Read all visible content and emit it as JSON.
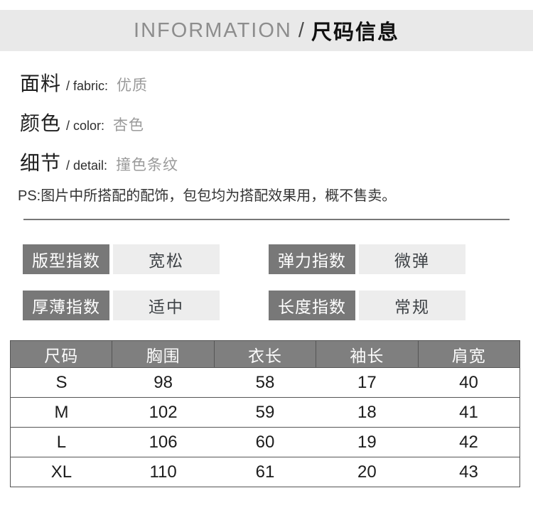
{
  "banner": {
    "title_en": "INFORMATION",
    "separator": "/",
    "title_cn": "尺码信息"
  },
  "attributes": [
    {
      "label_cn": "面料",
      "label_en": "/ fabric:",
      "value": "优质"
    },
    {
      "label_cn": "颜色",
      "label_en": "/ color:",
      "value": "杏色"
    },
    {
      "label_cn": "细节",
      "label_en": "/ detail:",
      "value": "撞色条纹"
    }
  ],
  "note": "PS:图片中所搭配的配饰，包包均为搭配效果用，概不售卖。",
  "indices": [
    {
      "label": "版型指数",
      "value": "宽松"
    },
    {
      "label": "弹力指数",
      "value": "微弹"
    },
    {
      "label": "厚薄指数",
      "value": "适中"
    },
    {
      "label": "长度指数",
      "value": "常规"
    }
  ],
  "size_table": {
    "headers": [
      "尺码",
      "胸围",
      "衣长",
      "袖长",
      "肩宽"
    ],
    "rows": [
      [
        "S",
        "98",
        "58",
        "17",
        "40"
      ],
      [
        "M",
        "102",
        "59",
        "18",
        "41"
      ],
      [
        "L",
        "106",
        "60",
        "19",
        "42"
      ],
      [
        "XL",
        "110",
        "61",
        "20",
        "43"
      ]
    ]
  },
  "colors": {
    "banner_bg": "#e9e9e9",
    "box_dark": "#787878",
    "box_light": "#ededed",
    "table_header_bg": "#7f7f7f",
    "divider": "#777777"
  }
}
